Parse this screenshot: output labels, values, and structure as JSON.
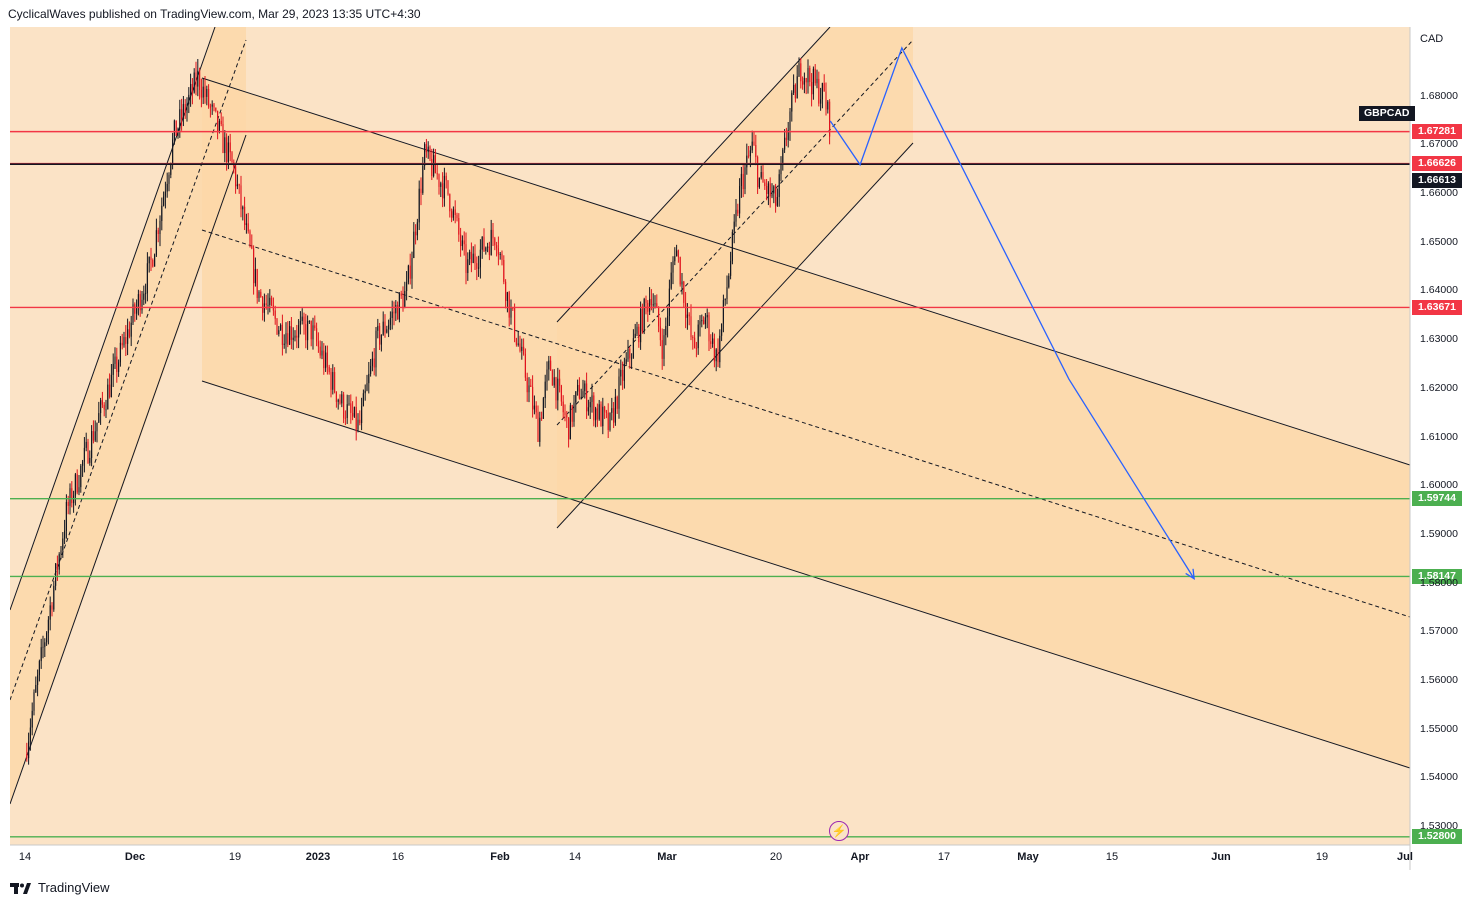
{
  "header": {
    "text": "CyclicalWaves published on TradingView.com, Mar 29, 2023 13:35 UTC+4:30"
  },
  "footer": {
    "brand": "TradingView"
  },
  "symbol": "GBPCAD",
  "currency": "CAD",
  "colors": {
    "background": "#fbe3c6",
    "channel_fill": "#fcd7a8",
    "up": "#131722",
    "down": "#e0141e",
    "resistance": "#f23645",
    "support": "#4caf50",
    "projection": "#2962ff"
  },
  "chart_data": {
    "type": "candlestick",
    "title": "",
    "y_axis": {
      "ticks": [
        "1.68000",
        "1.67000",
        "1.66000",
        "1.65000",
        "1.64000",
        "1.63000",
        "1.62000",
        "1.61000",
        "1.60000",
        "1.59000",
        "1.58000",
        "1.57000",
        "1.56000",
        "1.55000",
        "1.54000",
        "1.53000"
      ]
    },
    "x_axis": {
      "ticks": [
        "14",
        "Dec",
        "19",
        "2023",
        "16",
        "Feb",
        "14",
        "Mar",
        "20",
        "Apr",
        "17",
        "May",
        "15",
        "Jun",
        "19",
        "Jul"
      ],
      "bold_ticks": [
        "Dec",
        "2023",
        "Feb",
        "Mar",
        "Apr",
        "May",
        "Jun",
        "Jul"
      ]
    },
    "horizontal_levels": [
      {
        "price": 1.67281,
        "label": "1.67281",
        "type": "resistance"
      },
      {
        "price": 1.66626,
        "label": "1.66626",
        "type": "resistance"
      },
      {
        "price": 1.66613,
        "label": "1.66613",
        "type": "current"
      },
      {
        "price": 1.63671,
        "label": "1.63671",
        "type": "resistance"
      },
      {
        "price": 1.59744,
        "label": "1.59744",
        "type": "support"
      },
      {
        "price": 1.58147,
        "label": "1.58147",
        "type": "support"
      },
      {
        "price": 1.528,
        "label": "1.52800",
        "type": "support"
      }
    ],
    "price_path": [
      [
        "2022-11-14",
        1.545
      ],
      [
        "2022-11-21",
        1.595
      ],
      [
        "2022-11-28",
        1.62
      ],
      [
        "2022-12-05",
        1.645
      ],
      [
        "2022-12-09",
        1.672
      ],
      [
        "2022-12-13",
        1.684
      ],
      [
        "2022-12-19",
        1.665
      ],
      [
        "2022-12-23",
        1.64
      ],
      [
        "2022-12-27",
        1.632
      ],
      [
        "2023-01-01",
        1.632
      ],
      [
        "2023-01-06",
        1.617
      ],
      [
        "2023-01-09",
        1.612
      ],
      [
        "2023-01-12",
        1.63
      ],
      [
        "2023-01-17",
        1.64
      ],
      [
        "2023-01-20",
        1.668
      ],
      [
        "2023-01-24",
        1.66
      ],
      [
        "2023-01-27",
        1.645
      ],
      [
        "2023-02-01",
        1.652
      ],
      [
        "2023-02-03",
        1.638
      ],
      [
        "2023-02-08",
        1.612
      ],
      [
        "2023-02-10",
        1.625
      ],
      [
        "2023-02-13",
        1.612
      ],
      [
        "2023-02-15",
        1.62
      ],
      [
        "2023-02-20",
        1.612
      ],
      [
        "2023-02-22",
        1.622
      ],
      [
        "2023-02-27",
        1.64
      ],
      [
        "2023-03-01",
        1.628
      ],
      [
        "2023-03-03",
        1.65
      ],
      [
        "2023-03-06",
        1.628
      ],
      [
        "2023-03-08",
        1.635
      ],
      [
        "2023-03-10",
        1.626
      ],
      [
        "2023-03-14",
        1.662
      ],
      [
        "2023-03-16",
        1.67
      ],
      [
        "2023-03-17",
        1.663
      ],
      [
        "2023-03-20",
        1.658
      ],
      [
        "2023-03-22",
        1.675
      ],
      [
        "2023-03-24",
        1.686
      ],
      [
        "2023-03-28",
        1.68
      ],
      [
        "2023-03-29",
        1.674
      ]
    ],
    "projection": [
      [
        "2023-03-29",
        1.675
      ],
      [
        "2023-04-03",
        1.666
      ],
      [
        "2023-04-10",
        1.69
      ],
      [
        "2023-05-08",
        1.622
      ],
      [
        "2023-05-29",
        1.581
      ]
    ]
  }
}
